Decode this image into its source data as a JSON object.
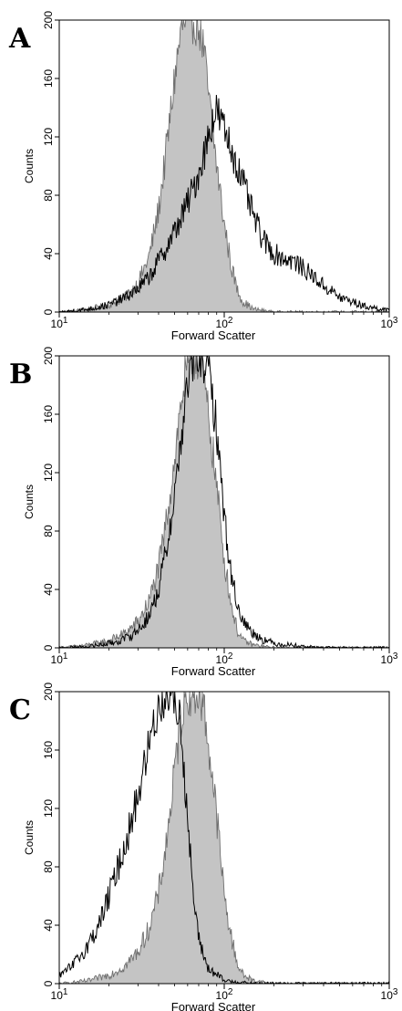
{
  "chart_data": [
    {
      "type": "area",
      "panel_label": "A",
      "xlabel": "Forward Scatter",
      "ylabel": "Counts",
      "x_scale": "log",
      "xlim": [
        10,
        1000
      ],
      "ylim": [
        0,
        200
      ],
      "x_ticks": [
        {
          "base": "10",
          "exp": "1"
        },
        {
          "base": "10",
          "exp": "2"
        },
        {
          "base": "10",
          "exp": "3"
        }
      ],
      "y_ticks": [
        "0",
        "40",
        "80",
        "120",
        "160",
        "200"
      ],
      "grid": false,
      "series": [
        {
          "style": "filled-gray",
          "x": [
            10,
            15,
            20,
            25,
            30,
            35,
            40,
            45,
            50,
            55,
            60,
            65,
            70,
            75,
            80,
            90,
            100,
            110,
            120,
            130,
            150,
            200,
            300,
            1000
          ],
          "y": [
            0,
            2,
            5,
            10,
            20,
            38,
            70,
            115,
            160,
            195,
            200,
            200,
            198,
            180,
            150,
            100,
            60,
            32,
            15,
            7,
            2,
            0,
            0,
            0
          ]
        },
        {
          "style": "black-line",
          "x": [
            10,
            15,
            20,
            25,
            30,
            35,
            40,
            45,
            50,
            55,
            60,
            70,
            80,
            85,
            90,
            100,
            110,
            120,
            130,
            150,
            170,
            200,
            230,
            260,
            300,
            350,
            400,
            500,
            600,
            700,
            800,
            900,
            1000
          ],
          "y": [
            0,
            2,
            5,
            10,
            16,
            24,
            35,
            45,
            55,
            65,
            75,
            95,
            120,
            132,
            138,
            125,
            112,
            100,
            88,
            66,
            50,
            40,
            37,
            35,
            30,
            24,
            18,
            10,
            7,
            4,
            3,
            2,
            1
          ]
        }
      ]
    },
    {
      "type": "area",
      "panel_label": "B",
      "xlabel": "Forward Scatter",
      "ylabel": "Counts",
      "x_scale": "log",
      "xlim": [
        10,
        1000
      ],
      "ylim": [
        0,
        200
      ],
      "x_ticks": [
        {
          "base": "10",
          "exp": "1"
        },
        {
          "base": "10",
          "exp": "2"
        },
        {
          "base": "10",
          "exp": "3"
        }
      ],
      "y_ticks": [
        "0",
        "40",
        "80",
        "120",
        "160",
        "200"
      ],
      "grid": false,
      "series": [
        {
          "style": "filled-gray",
          "x": [
            10,
            15,
            20,
            25,
            30,
            35,
            40,
            45,
            50,
            55,
            60,
            65,
            70,
            75,
            80,
            90,
            100,
            110,
            120,
            130,
            150,
            200,
            1000
          ],
          "y": [
            0,
            2,
            5,
            10,
            18,
            32,
            55,
            90,
            130,
            170,
            195,
            200,
            198,
            185,
            160,
            110,
            60,
            30,
            12,
            5,
            2,
            0,
            0
          ]
        },
        {
          "style": "black-line",
          "x": [
            10,
            15,
            20,
            25,
            30,
            35,
            40,
            45,
            50,
            55,
            60,
            65,
            70,
            75,
            80,
            90,
            100,
            110,
            120,
            130,
            150,
            170,
            200,
            250,
            300,
            400,
            500,
            1000
          ],
          "y": [
            0,
            1,
            3,
            6,
            12,
            22,
            40,
            70,
            105,
            145,
            180,
            198,
            200,
            198,
            190,
            150,
            90,
            50,
            30,
            18,
            10,
            6,
            3,
            2,
            1,
            0,
            0,
            0
          ]
        }
      ]
    },
    {
      "type": "area",
      "panel_label": "C",
      "xlabel": "Forward Scatter",
      "ylabel": "Counts",
      "x_scale": "log",
      "xlim": [
        10,
        1000
      ],
      "ylim": [
        0,
        200
      ],
      "x_ticks": [
        {
          "base": "10",
          "exp": "1"
        },
        {
          "base": "10",
          "exp": "2"
        },
        {
          "base": "10",
          "exp": "3"
        }
      ],
      "y_ticks": [
        "0",
        "40",
        "80",
        "120",
        "160",
        "200"
      ],
      "grid": false,
      "series": [
        {
          "style": "filled-gray",
          "x": [
            10,
            15,
            20,
            25,
            30,
            35,
            40,
            45,
            50,
            55,
            60,
            65,
            70,
            75,
            80,
            90,
            100,
            110,
            120,
            130,
            150,
            200,
            1000
          ],
          "y": [
            0,
            2,
            6,
            12,
            22,
            38,
            62,
            100,
            145,
            185,
            200,
            200,
            199,
            190,
            165,
            115,
            60,
            32,
            14,
            6,
            2,
            0,
            0
          ]
        },
        {
          "style": "black-line",
          "x": [
            10,
            12,
            14,
            16,
            18,
            20,
            22,
            25,
            28,
            30,
            33,
            36,
            40,
            45,
            48,
            50,
            55,
            60,
            65,
            70,
            80,
            100,
            150,
            1000
          ],
          "y": [
            5,
            12,
            22,
            32,
            45,
            60,
            75,
            95,
            115,
            130,
            150,
            170,
            190,
            200,
            200,
            195,
            175,
            110,
            60,
            30,
            10,
            2,
            0,
            0
          ]
        }
      ]
    }
  ]
}
